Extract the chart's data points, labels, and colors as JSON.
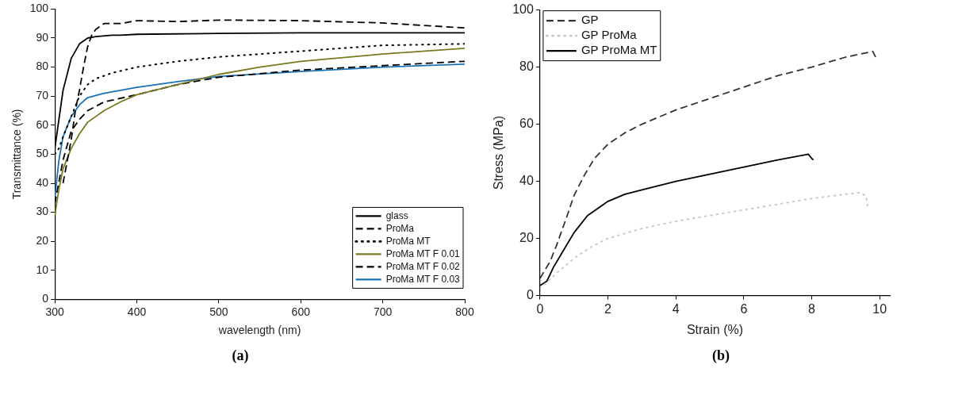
{
  "chart_data": [
    {
      "type": "line",
      "xlabel": "wavelength (nm)",
      "ylabel": "Transmittance (%)",
      "xlim": [
        300,
        800
      ],
      "ylim": [
        0,
        100
      ],
      "xticks": [
        300,
        400,
        500,
        600,
        700,
        800
      ],
      "yticks": [
        0,
        10,
        20,
        30,
        40,
        50,
        60,
        70,
        80,
        90,
        100
      ],
      "legend": "bottom right",
      "grid": false,
      "marker": "none",
      "annotations": [
        "(a)"
      ],
      "series": [
        {
          "name": "glass",
          "color": "#000000",
          "line_style": "solid",
          "x": [
            300,
            305,
            310,
            320,
            330,
            340,
            350,
            370,
            380,
            400,
            500,
            600,
            800
          ],
          "values": [
            52,
            62,
            72,
            83,
            88,
            90,
            90.5,
            91,
            91,
            91.3,
            91.6,
            91.8,
            91.8
          ]
        },
        {
          "name": "ProMa",
          "color": "#000000",
          "line_style": "dashed",
          "x": [
            310,
            320,
            325,
            330,
            335,
            340,
            345,
            350,
            360,
            380,
            400,
            450,
            500,
            600,
            700,
            800
          ],
          "values": [
            40,
            55,
            65,
            72,
            80,
            87,
            91,
            93,
            95,
            95,
            96,
            95.7,
            96.2,
            96,
            95.2,
            93.5
          ]
        },
        {
          "name": "ProMa MT",
          "color": "#000000",
          "line_style": "dotted",
          "x": [
            300,
            305,
            310,
            320,
            330,
            340,
            350,
            370,
            400,
            450,
            500,
            600,
            700,
            800
          ],
          "values": [
            50,
            52,
            56,
            63,
            70,
            74,
            76,
            78,
            80,
            82,
            83.5,
            85.5,
            87.5,
            88
          ]
        },
        {
          "name": "ProMa MT F 0.01",
          "color": "#7b7a1f",
          "line_style": "solid",
          "x": [
            300,
            305,
            310,
            320,
            330,
            340,
            360,
            380,
            400,
            450,
            500,
            550,
            600,
            700,
            800
          ],
          "values": [
            29,
            38,
            45,
            52,
            57,
            61,
            65,
            68,
            70.5,
            74,
            77.5,
            80,
            82,
            84.5,
            86.5
          ]
        },
        {
          "name": "ProMa MT F 0.02",
          "color": "#000000",
          "line_style": "dashed",
          "x": [
            300,
            310,
            320,
            330,
            340,
            360,
            400,
            450,
            500,
            600,
            700,
            800
          ],
          "values": [
            33,
            48,
            58,
            62,
            65,
            68,
            70.5,
            74,
            76.5,
            79,
            80.5,
            82
          ]
        },
        {
          "name": "ProMa MT F 0.03",
          "color": "#1a72b5",
          "line_style": "solid",
          "x": [
            300,
            305,
            310,
            320,
            330,
            340,
            360,
            380,
            400,
            450,
            500,
            600,
            700,
            800
          ],
          "values": [
            35,
            48,
            56,
            63,
            67,
            69.5,
            71,
            72,
            73,
            75,
            76.8,
            78.5,
            80,
            81
          ]
        }
      ]
    },
    {
      "type": "line",
      "xlabel": "Strain (%)",
      "ylabel": "Stress (MPa)",
      "xlim": [
        0,
        10.3
      ],
      "ylim": [
        0,
        100
      ],
      "xticks": [
        0,
        2,
        4,
        6,
        8,
        10
      ],
      "yticks": [
        0,
        20,
        40,
        60,
        80,
        100
      ],
      "legend": "top left",
      "grid": false,
      "marker": "none",
      "annotations": [
        "(b)"
      ],
      "series": [
        {
          "name": "GP",
          "color": "#333333",
          "line_style": "dashed",
          "x": [
            0,
            0.3,
            0.5,
            0.8,
            1,
            1.3,
            1.6,
            2,
            2.5,
            3,
            4,
            5,
            6,
            7,
            8,
            9,
            9.8,
            9.9
          ],
          "values": [
            6,
            12,
            18,
            28,
            35,
            42,
            48,
            53,
            57,
            60,
            65,
            69,
            73,
            77,
            80,
            83.5,
            85.5,
            83
          ]
        },
        {
          "name": "GP ProMa",
          "color": "#c8c8c8",
          "line_style": "dotted",
          "x": [
            0,
            0.5,
            1,
            1.5,
            2,
            3,
            4,
            5,
            6,
            7,
            8,
            9,
            9.4,
            9.6,
            9.65
          ],
          "values": [
            2.5,
            8,
            13,
            17,
            20,
            23.5,
            26,
            28,
            30,
            32,
            34,
            35.5,
            36,
            35,
            31
          ]
        },
        {
          "name": "GP ProMa MT",
          "color": "#000000",
          "line_style": "solid",
          "x": [
            0,
            0.2,
            0.4,
            0.7,
            1,
            1.4,
            2,
            2.5,
            3,
            4,
            5,
            6,
            7,
            7.9,
            8,
            8.05
          ],
          "values": [
            3.5,
            5,
            10,
            16,
            22,
            28,
            33,
            35.5,
            37,
            40,
            42.5,
            45,
            47.5,
            49.5,
            48,
            47.5
          ]
        }
      ]
    }
  ]
}
